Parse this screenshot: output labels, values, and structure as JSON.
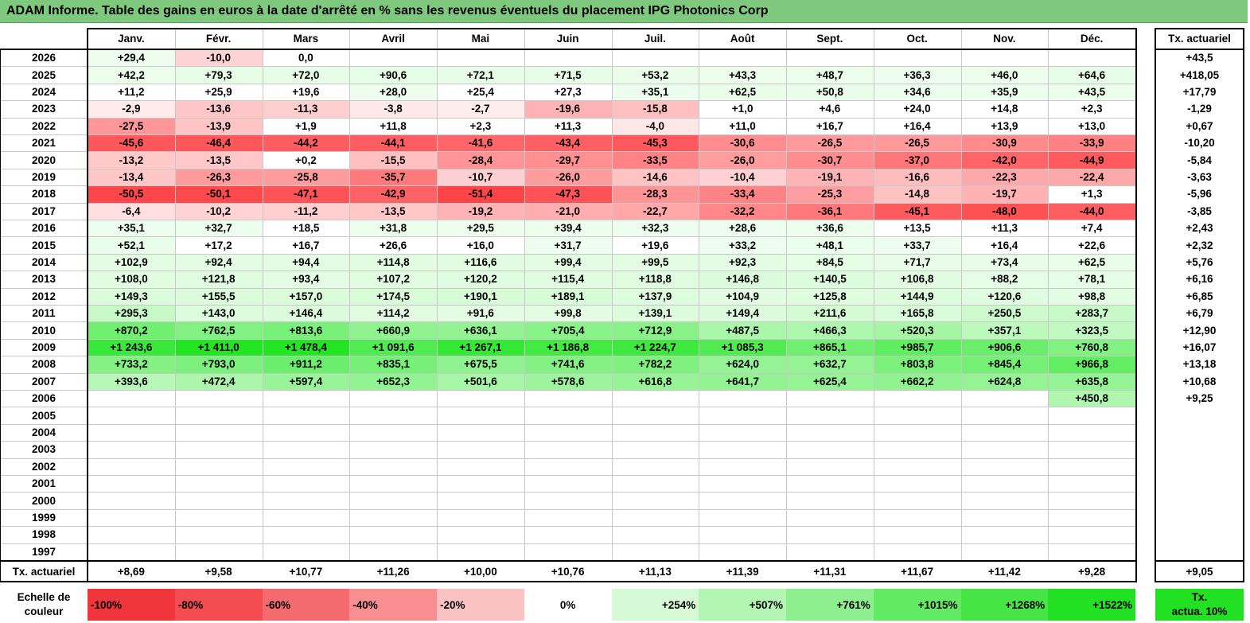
{
  "title": "ADAM Informe. Table des gains en euros à la date d'arrêté en % sans les revenus éventuels du placement IPG Photonics Corp",
  "chart_data": {
    "type": "table",
    "months": [
      "Janv.",
      "Févr.",
      "Mars",
      "Avril",
      "Mai",
      "Juin",
      "Juil.",
      "Août",
      "Sept.",
      "Oct.",
      "Nov.",
      "Déc."
    ],
    "rate_header": "Tx. actuariel",
    "rows": [
      {
        "year": "2026",
        "values": [
          "+29,4",
          "-10,0",
          "0,0",
          "",
          "",
          "",
          "",
          "",
          "",
          "",
          "",
          ""
        ],
        "rate": "+43,5"
      },
      {
        "year": "2025",
        "values": [
          "+42,2",
          "+79,3",
          "+72,0",
          "+90,6",
          "+72,1",
          "+71,5",
          "+53,2",
          "+43,3",
          "+48,7",
          "+36,3",
          "+46,0",
          "+64,6"
        ],
        "rate": "+418,05"
      },
      {
        "year": "2024",
        "values": [
          "+11,2",
          "+25,9",
          "+19,6",
          "+28,0",
          "+25,4",
          "+27,3",
          "+35,1",
          "+62,5",
          "+50,8",
          "+34,6",
          "+35,9",
          "+43,5"
        ],
        "rate": "+17,79"
      },
      {
        "year": "2023",
        "values": [
          "-2,9",
          "-13,6",
          "-11,3",
          "-3,8",
          "-2,7",
          "-19,6",
          "-15,8",
          "+1,0",
          "+4,6",
          "+24,0",
          "+14,8",
          "+2,3"
        ],
        "rate": "-1,29"
      },
      {
        "year": "2022",
        "values": [
          "-27,5",
          "-13,9",
          "+1,9",
          "+11,8",
          "+2,3",
          "+11,3",
          "-4,0",
          "+11,0",
          "+16,7",
          "+16,4",
          "+13,9",
          "+13,0"
        ],
        "rate": "+0,67"
      },
      {
        "year": "2021",
        "values": [
          "-45,6",
          "-46,4",
          "-44,2",
          "-44,1",
          "-41,6",
          "-43,4",
          "-45,3",
          "-30,6",
          "-26,5",
          "-26,5",
          "-30,9",
          "-33,9"
        ],
        "rate": "-10,20"
      },
      {
        "year": "2020",
        "values": [
          "-13,2",
          "-13,5",
          "+0,2",
          "-15,5",
          "-28,4",
          "-29,7",
          "-33,5",
          "-26,0",
          "-30,7",
          "-37,0",
          "-42,0",
          "-44,9"
        ],
        "rate": "-5,84"
      },
      {
        "year": "2019",
        "values": [
          "-13,4",
          "-26,3",
          "-25,8",
          "-35,7",
          "-10,7",
          "-26,0",
          "-14,6",
          "-10,4",
          "-19,1",
          "-16,6",
          "-22,3",
          "-22,4"
        ],
        "rate": "-3,63"
      },
      {
        "year": "2018",
        "values": [
          "-50,5",
          "-50,1",
          "-47,1",
          "-42,9",
          "-51,4",
          "-47,3",
          "-28,3",
          "-33,4",
          "-25,3",
          "-14,8",
          "-19,7",
          "+1,3"
        ],
        "rate": "-5,96"
      },
      {
        "year": "2017",
        "values": [
          "-6,4",
          "-10,2",
          "-11,2",
          "-13,5",
          "-19,2",
          "-21,0",
          "-22,7",
          "-32,2",
          "-36,1",
          "-45,1",
          "-48,0",
          "-44,0"
        ],
        "rate": "-3,85"
      },
      {
        "year": "2016",
        "values": [
          "+35,1",
          "+32,7",
          "+18,5",
          "+31,8",
          "+29,5",
          "+39,4",
          "+32,3",
          "+28,6",
          "+36,6",
          "+13,5",
          "+11,3",
          "+7,4"
        ],
        "rate": "+2,43"
      },
      {
        "year": "2015",
        "values": [
          "+52,1",
          "+17,2",
          "+16,7",
          "+26,6",
          "+16,0",
          "+31,7",
          "+19,6",
          "+33,2",
          "+48,1",
          "+33,7",
          "+16,4",
          "+22,6"
        ],
        "rate": "+2,32"
      },
      {
        "year": "2014",
        "values": [
          "+102,9",
          "+92,4",
          "+94,4",
          "+114,8",
          "+116,6",
          "+99,4",
          "+99,5",
          "+92,3",
          "+84,5",
          "+71,7",
          "+73,4",
          "+62,5"
        ],
        "rate": "+5,76"
      },
      {
        "year": "2013",
        "values": [
          "+108,0",
          "+121,8",
          "+93,4",
          "+107,2",
          "+120,2",
          "+115,4",
          "+118,8",
          "+146,8",
          "+140,5",
          "+106,8",
          "+88,2",
          "+78,1"
        ],
        "rate": "+6,16"
      },
      {
        "year": "2012",
        "values": [
          "+149,3",
          "+155,5",
          "+157,0",
          "+174,5",
          "+190,1",
          "+189,1",
          "+137,9",
          "+104,9",
          "+125,8",
          "+144,9",
          "+120,6",
          "+98,8"
        ],
        "rate": "+6,85"
      },
      {
        "year": "2011",
        "values": [
          "+295,3",
          "+143,0",
          "+146,4",
          "+114,2",
          "+91,6",
          "+99,8",
          "+139,1",
          "+149,4",
          "+211,6",
          "+165,8",
          "+250,5",
          "+283,7"
        ],
        "rate": "+6,79"
      },
      {
        "year": "2010",
        "values": [
          "+870,2",
          "+762,5",
          "+813,6",
          "+660,9",
          "+636,1",
          "+705,4",
          "+712,9",
          "+487,5",
          "+466,3",
          "+520,3",
          "+357,1",
          "+323,5"
        ],
        "rate": "+12,90"
      },
      {
        "year": "2009",
        "values": [
          "+1 243,6",
          "+1 411,0",
          "+1 478,4",
          "+1 091,6",
          "+1 267,1",
          "+1 186,8",
          "+1 224,7",
          "+1 085,3",
          "+865,1",
          "+985,7",
          "+906,6",
          "+760,8"
        ],
        "rate": "+16,07"
      },
      {
        "year": "2008",
        "values": [
          "+733,2",
          "+793,0",
          "+911,2",
          "+835,1",
          "+675,5",
          "+741,6",
          "+782,2",
          "+624,0",
          "+632,7",
          "+803,8",
          "+845,4",
          "+966,8"
        ],
        "rate": "+13,18"
      },
      {
        "year": "2007",
        "values": [
          "+393,6",
          "+472,4",
          "+597,4",
          "+652,3",
          "+501,6",
          "+578,6",
          "+616,8",
          "+641,7",
          "+625,4",
          "+662,2",
          "+624,8",
          "+635,8"
        ],
        "rate": "+10,68"
      },
      {
        "year": "2006",
        "values": [
          "",
          "",
          "",
          "",
          "",
          "",
          "",
          "",
          "",
          "",
          "",
          "+450,8"
        ],
        "rate": "+9,25"
      },
      {
        "year": "2005",
        "values": [
          "",
          "",
          "",
          "",
          "",
          "",
          "",
          "",
          "",
          "",
          "",
          ""
        ],
        "rate": ""
      },
      {
        "year": "2004",
        "values": [
          "",
          "",
          "",
          "",
          "",
          "",
          "",
          "",
          "",
          "",
          "",
          ""
        ],
        "rate": ""
      },
      {
        "year": "2003",
        "values": [
          "",
          "",
          "",
          "",
          "",
          "",
          "",
          "",
          "",
          "",
          "",
          ""
        ],
        "rate": ""
      },
      {
        "year": "2002",
        "values": [
          "",
          "",
          "",
          "",
          "",
          "",
          "",
          "",
          "",
          "",
          "",
          ""
        ],
        "rate": ""
      },
      {
        "year": "2001",
        "values": [
          "",
          "",
          "",
          "",
          "",
          "",
          "",
          "",
          "",
          "",
          "",
          ""
        ],
        "rate": ""
      },
      {
        "year": "2000",
        "values": [
          "",
          "",
          "",
          "",
          "",
          "",
          "",
          "",
          "",
          "",
          "",
          ""
        ],
        "rate": ""
      },
      {
        "year": "1999",
        "values": [
          "",
          "",
          "",
          "",
          "",
          "",
          "",
          "",
          "",
          "",
          "",
          ""
        ],
        "rate": ""
      },
      {
        "year": "1998",
        "values": [
          "",
          "",
          "",
          "",
          "",
          "",
          "",
          "",
          "",
          "",
          "",
          ""
        ],
        "rate": ""
      },
      {
        "year": "1997",
        "values": [
          "",
          "",
          "",
          "",
          "",
          "",
          "",
          "",
          "",
          "",
          "",
          ""
        ],
        "rate": ""
      }
    ],
    "footer": {
      "label": "Tx. actuariel",
      "values": [
        "+8,69",
        "+9,58",
        "+10,77",
        "+11,26",
        "+10,00",
        "+10,76",
        "+11,13",
        "+11,39",
        "+11,31",
        "+11,67",
        "+11,42",
        "+9,28"
      ],
      "rate": "+9,05"
    },
    "scale": {
      "label_line1": "Echelle de",
      "label_line2": "couleur",
      "items": [
        {
          "text": "-100%",
          "color": "#f0353b",
          "align": "left"
        },
        {
          "text": "-80%",
          "color": "#f34d52",
          "align": "left"
        },
        {
          "text": "-60%",
          "color": "#f56a6e",
          "align": "left"
        },
        {
          "text": "-40%",
          "color": "#f88e90",
          "align": "left"
        },
        {
          "text": "-20%",
          "color": "#fbc2c3",
          "align": "left"
        },
        {
          "text": "0%",
          "color": "#ffffff",
          "align": "center"
        },
        {
          "text": "+254%",
          "color": "#d6fad6",
          "align": "right"
        },
        {
          "text": "+507%",
          "color": "#b3f5b3",
          "align": "right"
        },
        {
          "text": "+761%",
          "color": "#8def8d",
          "align": "right"
        },
        {
          "text": "+1015%",
          "color": "#63ea63",
          "align": "right"
        },
        {
          "text": "+1268%",
          "color": "#44e544",
          "align": "right"
        },
        {
          "text": "+1522%",
          "color": "#22e022",
          "align": "right"
        }
      ],
      "rate_line1": "Tx.",
      "rate_line2": "actua. 10%",
      "rate_color": "#22e022"
    }
  }
}
